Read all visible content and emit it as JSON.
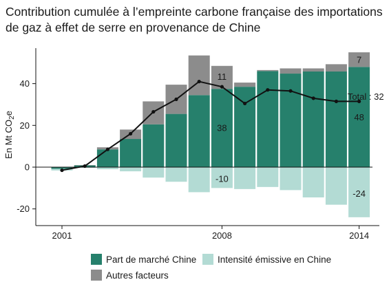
{
  "title_line1": "Contribution cumulée à l’empreinte carbone française des importations",
  "title_line2": "de gaz à effet de serre en provenance de Chine",
  "colors": {
    "market": "#26806c",
    "intensity": "#b3dbd4",
    "other": "#8c8c8c",
    "line": "#111111"
  },
  "legend": {
    "market": "Part de marché Chine",
    "intensity": "Intensité émissive en Chine",
    "other": "Autres facteurs"
  },
  "chart_data": {
    "type": "bar",
    "stacked": true,
    "ylabel": "En Mt CO",
    "ylabel_sub": "2",
    "ylabel_suffix": "e",
    "ylim": [
      -28,
      57
    ],
    "yticks": [
      -20,
      0,
      20,
      40
    ],
    "years": [
      2001,
      2002,
      2003,
      2004,
      2005,
      2006,
      2007,
      2008,
      2009,
      2010,
      2011,
      2012,
      2013,
      2014
    ],
    "xtick_labels": [
      "2001",
      "2008",
      "2014"
    ],
    "xtick_years": [
      2001,
      2008,
      2014
    ],
    "series": [
      {
        "name": "Part de marché Chine",
        "values": [
          -0.8,
          0.8,
          8.5,
          13.5,
          20.5,
          25.5,
          34.5,
          37.5,
          38.5,
          46.0,
          44.8,
          45.8,
          45.8,
          48.0
        ]
      },
      {
        "name": "Intensité émissive en Chine",
        "values": [
          -0.8,
          -0.3,
          -1.0,
          -2.0,
          -5.0,
          -7.0,
          -12.0,
          -10.0,
          -10.5,
          -9.5,
          -11.0,
          -14.5,
          -18.0,
          -24.0
        ]
      },
      {
        "name": "Autres facteurs",
        "values": [
          0,
          0.2,
          1.0,
          4.5,
          11.0,
          14.0,
          19.0,
          11.0,
          2.0,
          0.5,
          2.5,
          1.5,
          3.5,
          7.0
        ]
      }
    ],
    "total_line": [
      -1.5,
      0.5,
      8.5,
      16.0,
      26.5,
      32.5,
      41.0,
      38.5,
      30.5,
      37.0,
      36.5,
      33.0,
      31.5,
      31.5
    ],
    "annotations": [
      {
        "year": 2008,
        "value": 11,
        "text": "11",
        "y": 43.5
      },
      {
        "year": 2008,
        "value": 38,
        "text": "38",
        "y": 19
      },
      {
        "year": 2008,
        "value": -10,
        "text": "-10",
        "y": -5.5
      },
      {
        "year": 2014,
        "value": 7,
        "text": "7",
        "y": 51.5
      },
      {
        "year": 2014,
        "value": 48,
        "text": "48",
        "y": 24
      },
      {
        "year": 2014,
        "value": -24,
        "text": "-24",
        "y": -12.5
      },
      {
        "year": 2014,
        "value": 32,
        "text": "Total : 32",
        "y": 34
      }
    ]
  }
}
